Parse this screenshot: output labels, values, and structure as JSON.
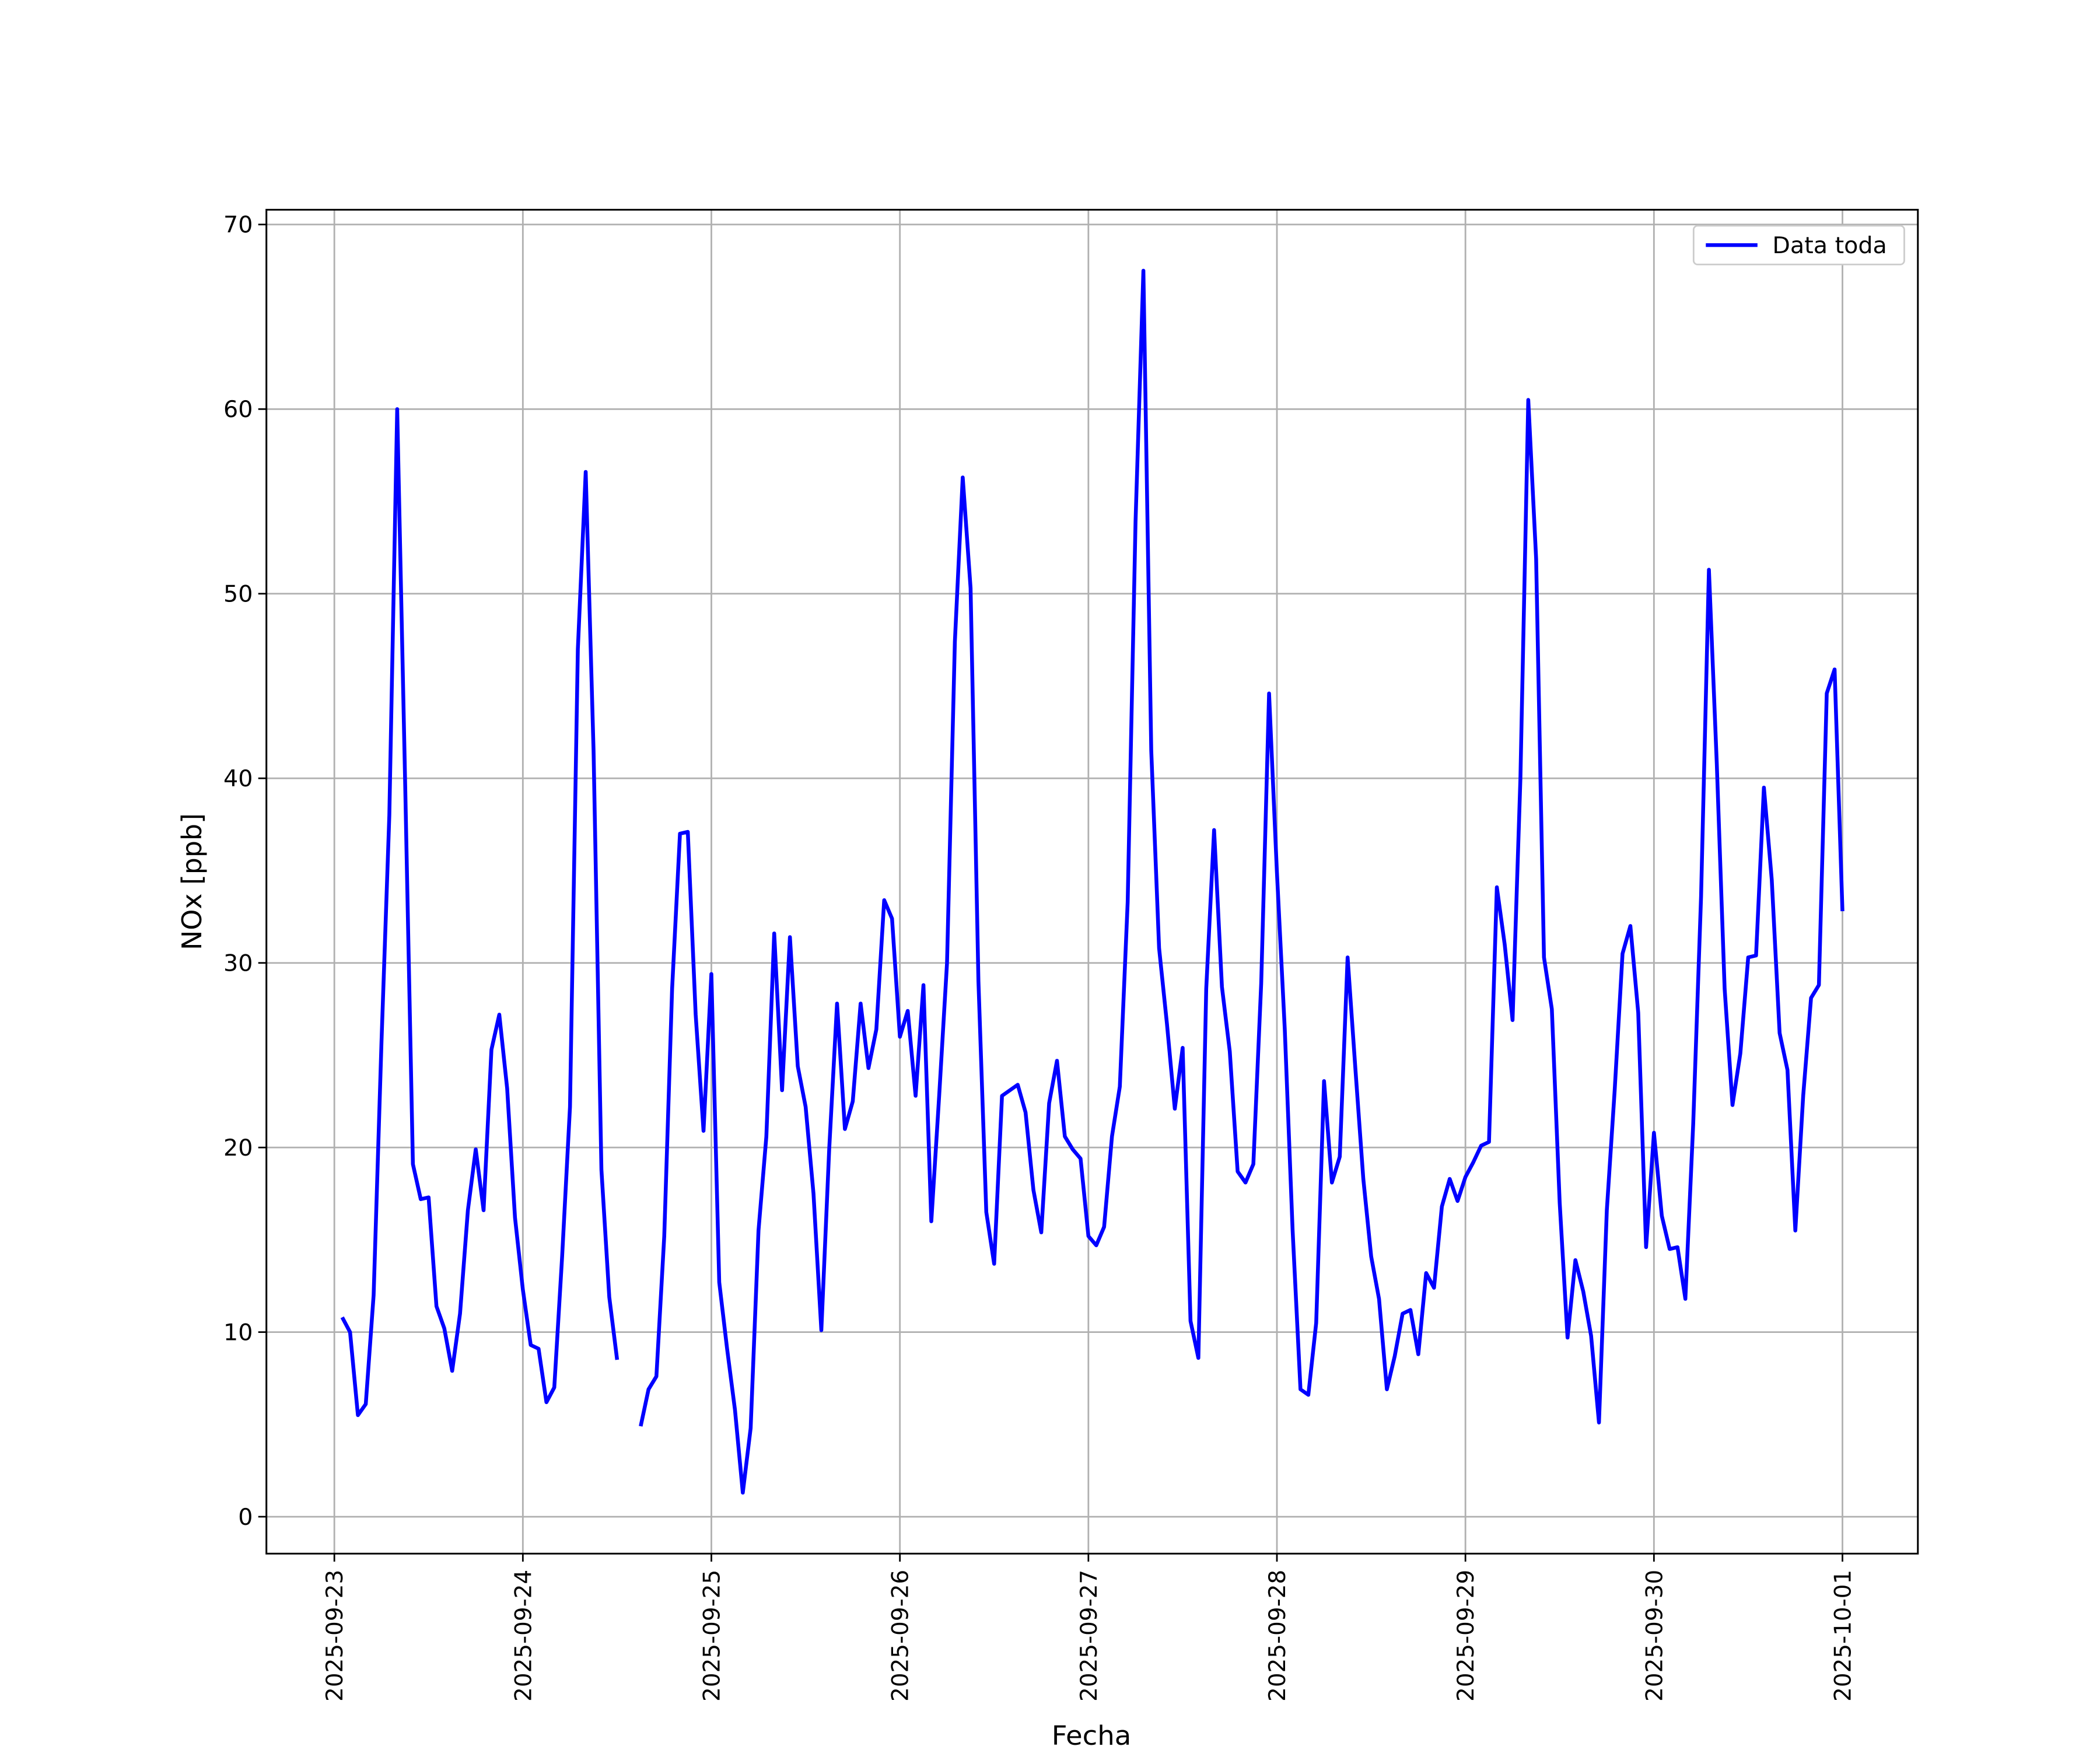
{
  "chart_data": {
    "type": "line",
    "xlabel": "Fecha",
    "ylabel": "NOx [ppb]",
    "x": [
      "2025-09-23 01:00",
      "2025-09-23 02:00",
      "2025-09-23 03:00",
      "2025-09-23 04:00",
      "2025-09-23 05:00",
      "2025-09-23 06:00",
      "2025-09-23 07:00",
      "2025-09-23 08:00",
      "2025-09-23 09:00",
      "2025-09-23 10:00",
      "2025-09-23 11:00",
      "2025-09-23 12:00",
      "2025-09-23 13:00",
      "2025-09-23 14:00",
      "2025-09-23 15:00",
      "2025-09-23 16:00",
      "2025-09-23 17:00",
      "2025-09-23 18:00",
      "2025-09-23 19:00",
      "2025-09-23 20:00",
      "2025-09-23 21:00",
      "2025-09-23 22:00",
      "2025-09-23 23:00",
      "2025-09-24 00:00",
      "2025-09-24 01:00",
      "2025-09-24 02:00",
      "2025-09-24 03:00",
      "2025-09-24 04:00",
      "2025-09-24 05:00",
      "2025-09-24 06:00",
      "2025-09-24 07:00",
      "2025-09-24 08:00",
      "2025-09-24 09:00",
      "2025-09-24 10:00",
      "2025-09-24 11:00",
      "2025-09-24 12:00",
      "2025-09-24 13:00",
      "2025-09-24 14:00",
      "2025-09-24 15:00",
      "2025-09-24 16:00",
      "2025-09-24 17:00",
      "2025-09-24 18:00",
      "2025-09-24 19:00",
      "2025-09-24 20:00",
      "2025-09-24 21:00",
      "2025-09-24 22:00",
      "2025-09-24 23:00",
      "2025-09-25 00:00",
      "2025-09-25 01:00",
      "2025-09-25 02:00",
      "2025-09-25 03:00",
      "2025-09-25 04:00",
      "2025-09-25 05:00",
      "2025-09-25 06:00",
      "2025-09-25 07:00",
      "2025-09-25 08:00",
      "2025-09-25 09:00",
      "2025-09-25 10:00",
      "2025-09-25 11:00",
      "2025-09-25 12:00",
      "2025-09-25 13:00",
      "2025-09-25 14:00",
      "2025-09-25 15:00",
      "2025-09-25 16:00",
      "2025-09-25 17:00",
      "2025-09-25 18:00",
      "2025-09-25 19:00",
      "2025-09-25 20:00",
      "2025-09-25 21:00",
      "2025-09-25 22:00",
      "2025-09-25 23:00",
      "2025-09-26 00:00",
      "2025-09-26 01:00",
      "2025-09-26 02:00",
      "2025-09-26 03:00",
      "2025-09-26 04:00",
      "2025-09-26 05:00",
      "2025-09-26 06:00",
      "2025-09-26 07:00",
      "2025-09-26 08:00",
      "2025-09-26 09:00",
      "2025-09-26 10:00",
      "2025-09-26 11:00",
      "2025-09-26 12:00",
      "2025-09-26 13:00",
      "2025-09-26 14:00",
      "2025-09-26 15:00",
      "2025-09-26 16:00",
      "2025-09-26 17:00",
      "2025-09-26 18:00",
      "2025-09-26 19:00",
      "2025-09-26 20:00",
      "2025-09-26 21:00",
      "2025-09-26 22:00",
      "2025-09-26 23:00",
      "2025-09-27 00:00",
      "2025-09-27 01:00",
      "2025-09-27 02:00",
      "2025-09-27 03:00",
      "2025-09-27 04:00",
      "2025-09-27 05:00",
      "2025-09-27 06:00",
      "2025-09-27 07:00",
      "2025-09-27 08:00",
      "2025-09-27 09:00",
      "2025-09-27 10:00",
      "2025-09-27 11:00",
      "2025-09-27 12:00",
      "2025-09-27 13:00",
      "2025-09-27 14:00",
      "2025-09-27 15:00",
      "2025-09-27 16:00",
      "2025-09-27 17:00",
      "2025-09-27 18:00",
      "2025-09-27 19:00",
      "2025-09-27 20:00",
      "2025-09-27 21:00",
      "2025-09-27 22:00",
      "2025-09-27 23:00",
      "2025-09-28 00:00",
      "2025-09-28 01:00",
      "2025-09-28 02:00",
      "2025-09-28 03:00",
      "2025-09-28 04:00",
      "2025-09-28 05:00",
      "2025-09-28 06:00",
      "2025-09-28 07:00",
      "2025-09-28 08:00",
      "2025-09-28 09:00",
      "2025-09-28 10:00",
      "2025-09-28 11:00",
      "2025-09-28 12:00",
      "2025-09-28 13:00",
      "2025-09-28 14:00",
      "2025-09-28 15:00",
      "2025-09-28 16:00",
      "2025-09-28 17:00",
      "2025-09-28 18:00",
      "2025-09-28 19:00",
      "2025-09-28 20:00",
      "2025-09-28 21:00",
      "2025-09-28 22:00",
      "2025-09-28 23:00",
      "2025-09-29 00:00",
      "2025-09-29 01:00",
      "2025-09-29 02:00",
      "2025-09-29 03:00",
      "2025-09-29 04:00",
      "2025-09-29 05:00",
      "2025-09-29 06:00",
      "2025-09-29 07:00",
      "2025-09-29 08:00",
      "2025-09-29 09:00",
      "2025-09-29 10:00",
      "2025-09-29 11:00",
      "2025-09-29 12:00",
      "2025-09-29 13:00",
      "2025-09-29 14:00",
      "2025-09-29 15:00",
      "2025-09-29 16:00",
      "2025-09-29 17:00",
      "2025-09-29 18:00",
      "2025-09-29 19:00",
      "2025-09-29 20:00",
      "2025-09-29 21:00",
      "2025-09-29 22:00",
      "2025-09-29 23:00",
      "2025-09-30 00:00",
      "2025-09-30 01:00",
      "2025-09-30 02:00",
      "2025-09-30 03:00",
      "2025-09-30 04:00",
      "2025-09-30 05:00",
      "2025-09-30 06:00",
      "2025-09-30 07:00",
      "2025-09-30 08:00",
      "2025-09-30 09:00",
      "2025-09-30 10:00",
      "2025-09-30 11:00",
      "2025-09-30 12:00",
      "2025-09-30 13:00",
      "2025-09-30 14:00",
      "2025-09-30 15:00",
      "2025-09-30 16:00",
      "2025-09-30 17:00",
      "2025-09-30 18:00",
      "2025-09-30 19:00",
      "2025-09-30 20:00",
      "2025-09-30 21:00",
      "2025-09-30 22:00",
      "2025-09-30 23:00",
      "2025-10-01 00:00"
    ],
    "series": [
      {
        "name": "Data toda",
        "color": "#0000ff",
        "values": [
          10.8,
          10.0,
          5.5,
          6.1,
          12.0,
          25.7,
          38,
          60,
          40,
          19.1,
          17.2,
          17.3,
          11.4,
          10.2,
          7.9,
          11,
          16.6,
          19.9,
          16.6,
          25.3,
          27.2,
          23.2,
          16.2,
          12.3,
          9.3,
          9.1,
          6.2,
          7.0,
          14.1,
          22.2,
          47,
          56.6,
          41.5,
          18.8,
          11.9,
          8.5,
          null,
          null,
          4.9,
          6.9,
          7.6,
          15.2,
          28.6,
          37.0,
          37.1,
          27.2,
          20.9,
          29.4,
          12.7,
          9.1,
          5.8,
          1.3,
          4.8,
          15.5,
          20.6,
          31.6,
          23.1,
          31.4,
          24.4,
          22.2,
          17.5,
          10.1,
          19.9,
          27.8,
          21.0,
          22.5,
          27.8,
          24.3,
          26.4,
          33.4,
          32.4,
          26.0,
          27.4,
          22.8,
          28.8,
          16.0,
          22.8,
          30,
          47.4,
          56.3,
          50.3,
          29,
          16.5,
          13.7,
          22.8,
          23.1,
          23.4,
          21.9,
          17.7,
          15.4,
          22.4,
          24.7,
          20.6,
          19.9,
          19.4,
          15.2,
          14.7,
          15.7,
          20.6,
          23.3,
          33.3,
          53.9,
          67.5,
          41.5,
          30.8,
          26.7,
          22.1,
          25.4,
          10.6,
          8.6,
          28.6,
          37.2,
          28.7,
          25.2,
          18.7,
          18.1,
          19.1,
          28.9,
          44.6,
          34.9,
          26.4,
          15.5,
          6.9,
          6.6,
          10.5,
          23.6,
          18.1,
          19.5,
          30.3,
          24.2,
          18.3,
          14.1,
          11.8,
          6.9,
          8.7,
          11,
          11.2,
          8.8,
          13.2,
          12.4,
          16.8,
          18.3,
          17.1,
          18.4,
          19.2,
          20.1,
          20.3,
          34.1,
          31,
          26.9,
          40,
          60.5,
          51.9,
          30.3,
          27.5,
          17,
          9.7,
          13.9,
          12.2,
          9.8,
          5.1,
          16.6,
          23.1,
          30.5,
          32,
          27.3,
          14.6,
          20.8,
          16.3,
          14.5,
          14.6,
          11.8,
          21.3,
          33.6,
          51.3,
          40.8,
          28.6,
          22.3,
          25.1,
          30.3,
          30.4,
          39.5,
          34.5,
          26.2,
          24.2,
          15.5,
          22.8,
          28.1,
          28.8,
          44.6,
          45.9,
          32.8
        ]
      }
    ],
    "xlim": [
      "2025-09-22 15:21",
      "2025-10-01 09:36"
    ],
    "xticks": [
      "2025-09-23",
      "2025-09-24",
      "2025-09-25",
      "2025-09-26",
      "2025-09-27",
      "2025-09-28",
      "2025-09-29",
      "2025-09-30",
      "2025-10-01"
    ],
    "ylim": [
      -2.0,
      70.8
    ],
    "yticks": [
      0,
      10,
      20,
      30,
      40,
      50,
      60,
      70
    ],
    "grid": true,
    "legend": "upper right"
  }
}
